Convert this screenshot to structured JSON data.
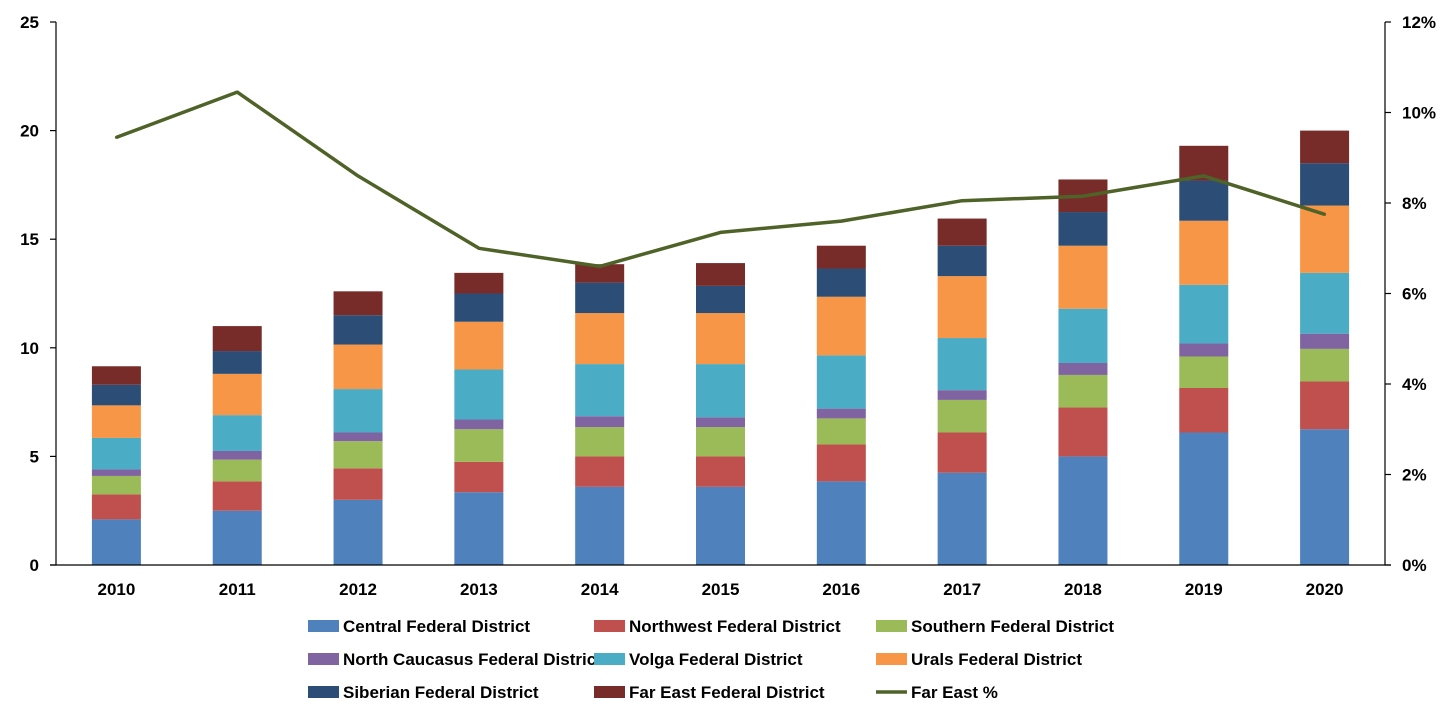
{
  "chart_data": {
    "type": "bar",
    "stacked": true,
    "categories": [
      "2010",
      "2011",
      "2012",
      "2013",
      "2014",
      "2015",
      "2016",
      "2017",
      "2018",
      "2019",
      "2020"
    ],
    "ylim": [
      0,
      25
    ],
    "y_ticks": [
      "0",
      "5",
      "10",
      "15",
      "20",
      "25"
    ],
    "y2lim": [
      0,
      12
    ],
    "y2_ticks": [
      "0%",
      "2%",
      "4%",
      "6%",
      "8%",
      "10%",
      "12%"
    ],
    "grid": false,
    "legend_position": "bottom",
    "series": [
      {
        "name": "Central Federal District",
        "color": "#4F81BD",
        "values": [
          2.1,
          2.5,
          3.0,
          3.35,
          3.6,
          3.6,
          3.85,
          4.25,
          5.0,
          6.1,
          6.25
        ]
      },
      {
        "name": "Northwest Federal District",
        "color": "#C0504D",
        "values": [
          1.15,
          1.35,
          1.45,
          1.4,
          1.4,
          1.4,
          1.7,
          1.85,
          2.25,
          2.05,
          2.2
        ]
      },
      {
        "name": "Southern Federal District",
        "color": "#9BBB59",
        "values": [
          0.85,
          1.0,
          1.25,
          1.5,
          1.35,
          1.35,
          1.2,
          1.5,
          1.5,
          1.45,
          1.5
        ]
      },
      {
        "name": "North Caucasus Federal District",
        "color": "#8064A2",
        "values": [
          0.3,
          0.4,
          0.4,
          0.45,
          0.5,
          0.45,
          0.45,
          0.45,
          0.55,
          0.6,
          0.7
        ]
      },
      {
        "name": "Volga Federal District",
        "color": "#4BACC6",
        "values": [
          1.45,
          1.65,
          2.0,
          2.3,
          2.4,
          2.45,
          2.45,
          2.4,
          2.5,
          2.7,
          2.8
        ]
      },
      {
        "name": "Urals Federal District",
        "color": "#F79646",
        "values": [
          1.5,
          1.9,
          2.05,
          2.2,
          2.35,
          2.35,
          2.7,
          2.85,
          2.9,
          2.95,
          3.1
        ]
      },
      {
        "name": "Siberian Federal District",
        "color": "#2C4D75",
        "values": [
          0.95,
          1.05,
          1.35,
          1.3,
          1.4,
          1.25,
          1.3,
          1.4,
          1.55,
          1.85,
          1.95
        ]
      },
      {
        "name": "Far East Federal District",
        "color": "#772C2A",
        "values": [
          0.85,
          1.15,
          1.1,
          0.95,
          0.85,
          1.05,
          1.05,
          1.25,
          1.5,
          1.6,
          1.5
        ]
      }
    ],
    "line_series": [
      {
        "name": "Far East %",
        "color": "#4F6228",
        "axis": "right",
        "values": [
          9.45,
          10.45,
          8.6,
          7.0,
          6.6,
          7.35,
          7.6,
          8.05,
          8.15,
          8.6,
          7.75
        ]
      }
    ]
  }
}
